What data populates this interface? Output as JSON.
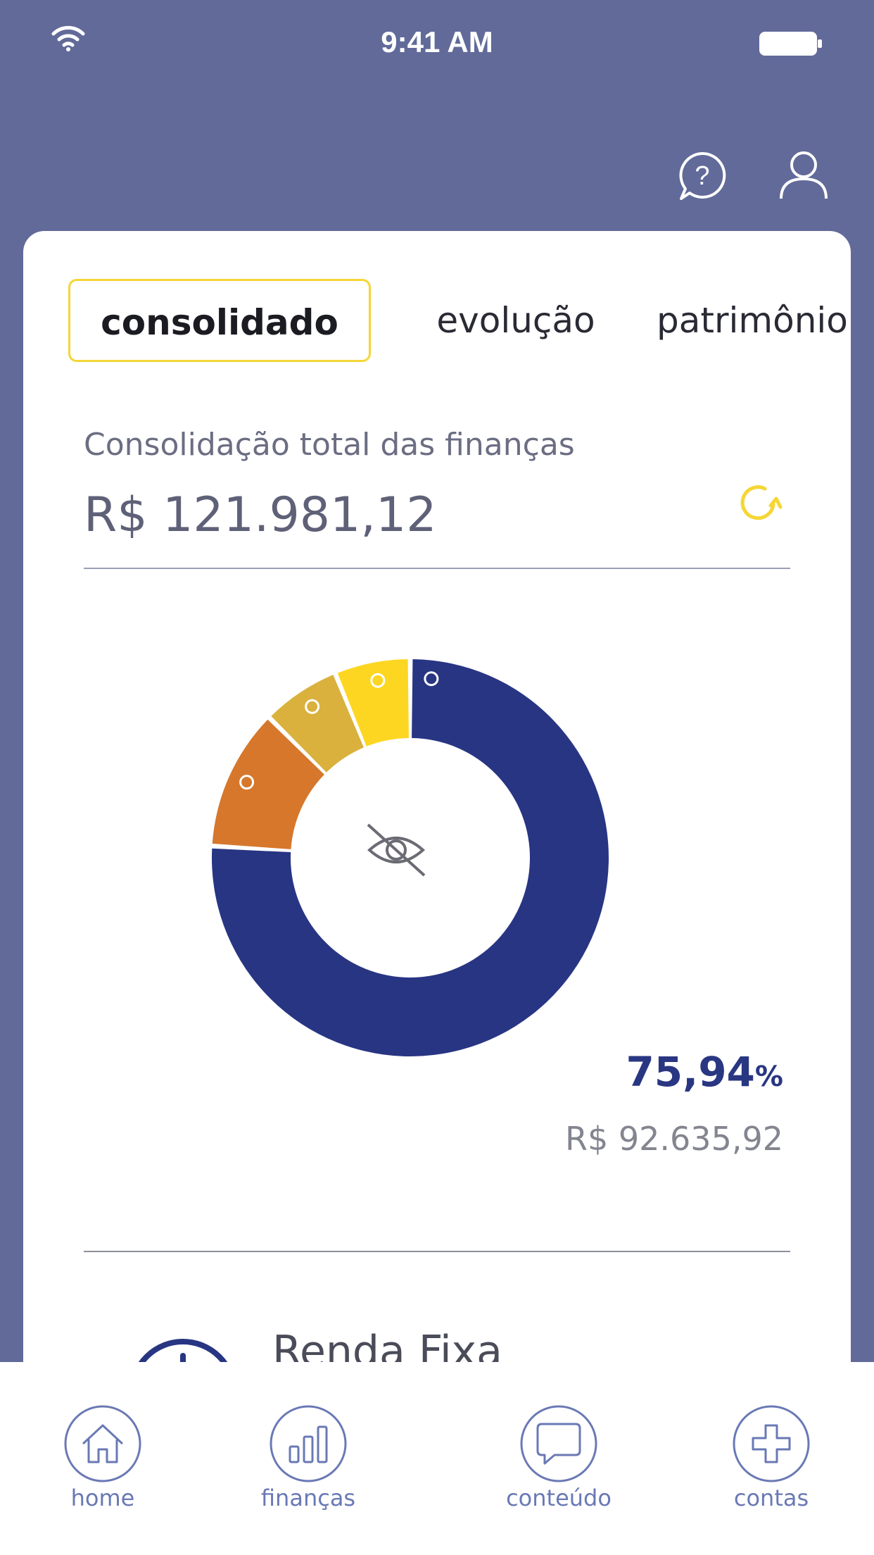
{
  "status_bar": {
    "time": "9:41 AM"
  },
  "tabs": [
    {
      "label": "consolidado",
      "active": true
    },
    {
      "label": "evolução",
      "active": false
    },
    {
      "label": "patrimônio",
      "active": false
    }
  ],
  "summary": {
    "label": "Consolidação total das finanças",
    "value": "R$ 121.981,12"
  },
  "highlight": {
    "percent": "75,94",
    "percent_sign": "%",
    "amount": "R$ 92.635,92"
  },
  "category": {
    "name": "Renda Fixa"
  },
  "chart_data": {
    "type": "pie",
    "donut": true,
    "slices": [
      {
        "value": 75.94,
        "color": "#283583"
      },
      {
        "value": 11.5,
        "color": "#D6772B"
      },
      {
        "value": 6.4,
        "color": "#DAB13D"
      },
      {
        "value": 6.16,
        "color": "#FDD621"
      }
    ]
  },
  "nav": [
    {
      "label": "home",
      "icon": "home-icon"
    },
    {
      "label": "finanças",
      "icon": "bar-chart-icon"
    },
    {
      "label": "conteúdo",
      "icon": "chat-bubble-icon"
    },
    {
      "label": "contas",
      "icon": "plus-icon"
    }
  ],
  "colors": {
    "header_bg": "#616A99",
    "accent_yellow": "#F5D635",
    "primary_navy": "#283583",
    "nav_blue": "#6A79B5"
  }
}
